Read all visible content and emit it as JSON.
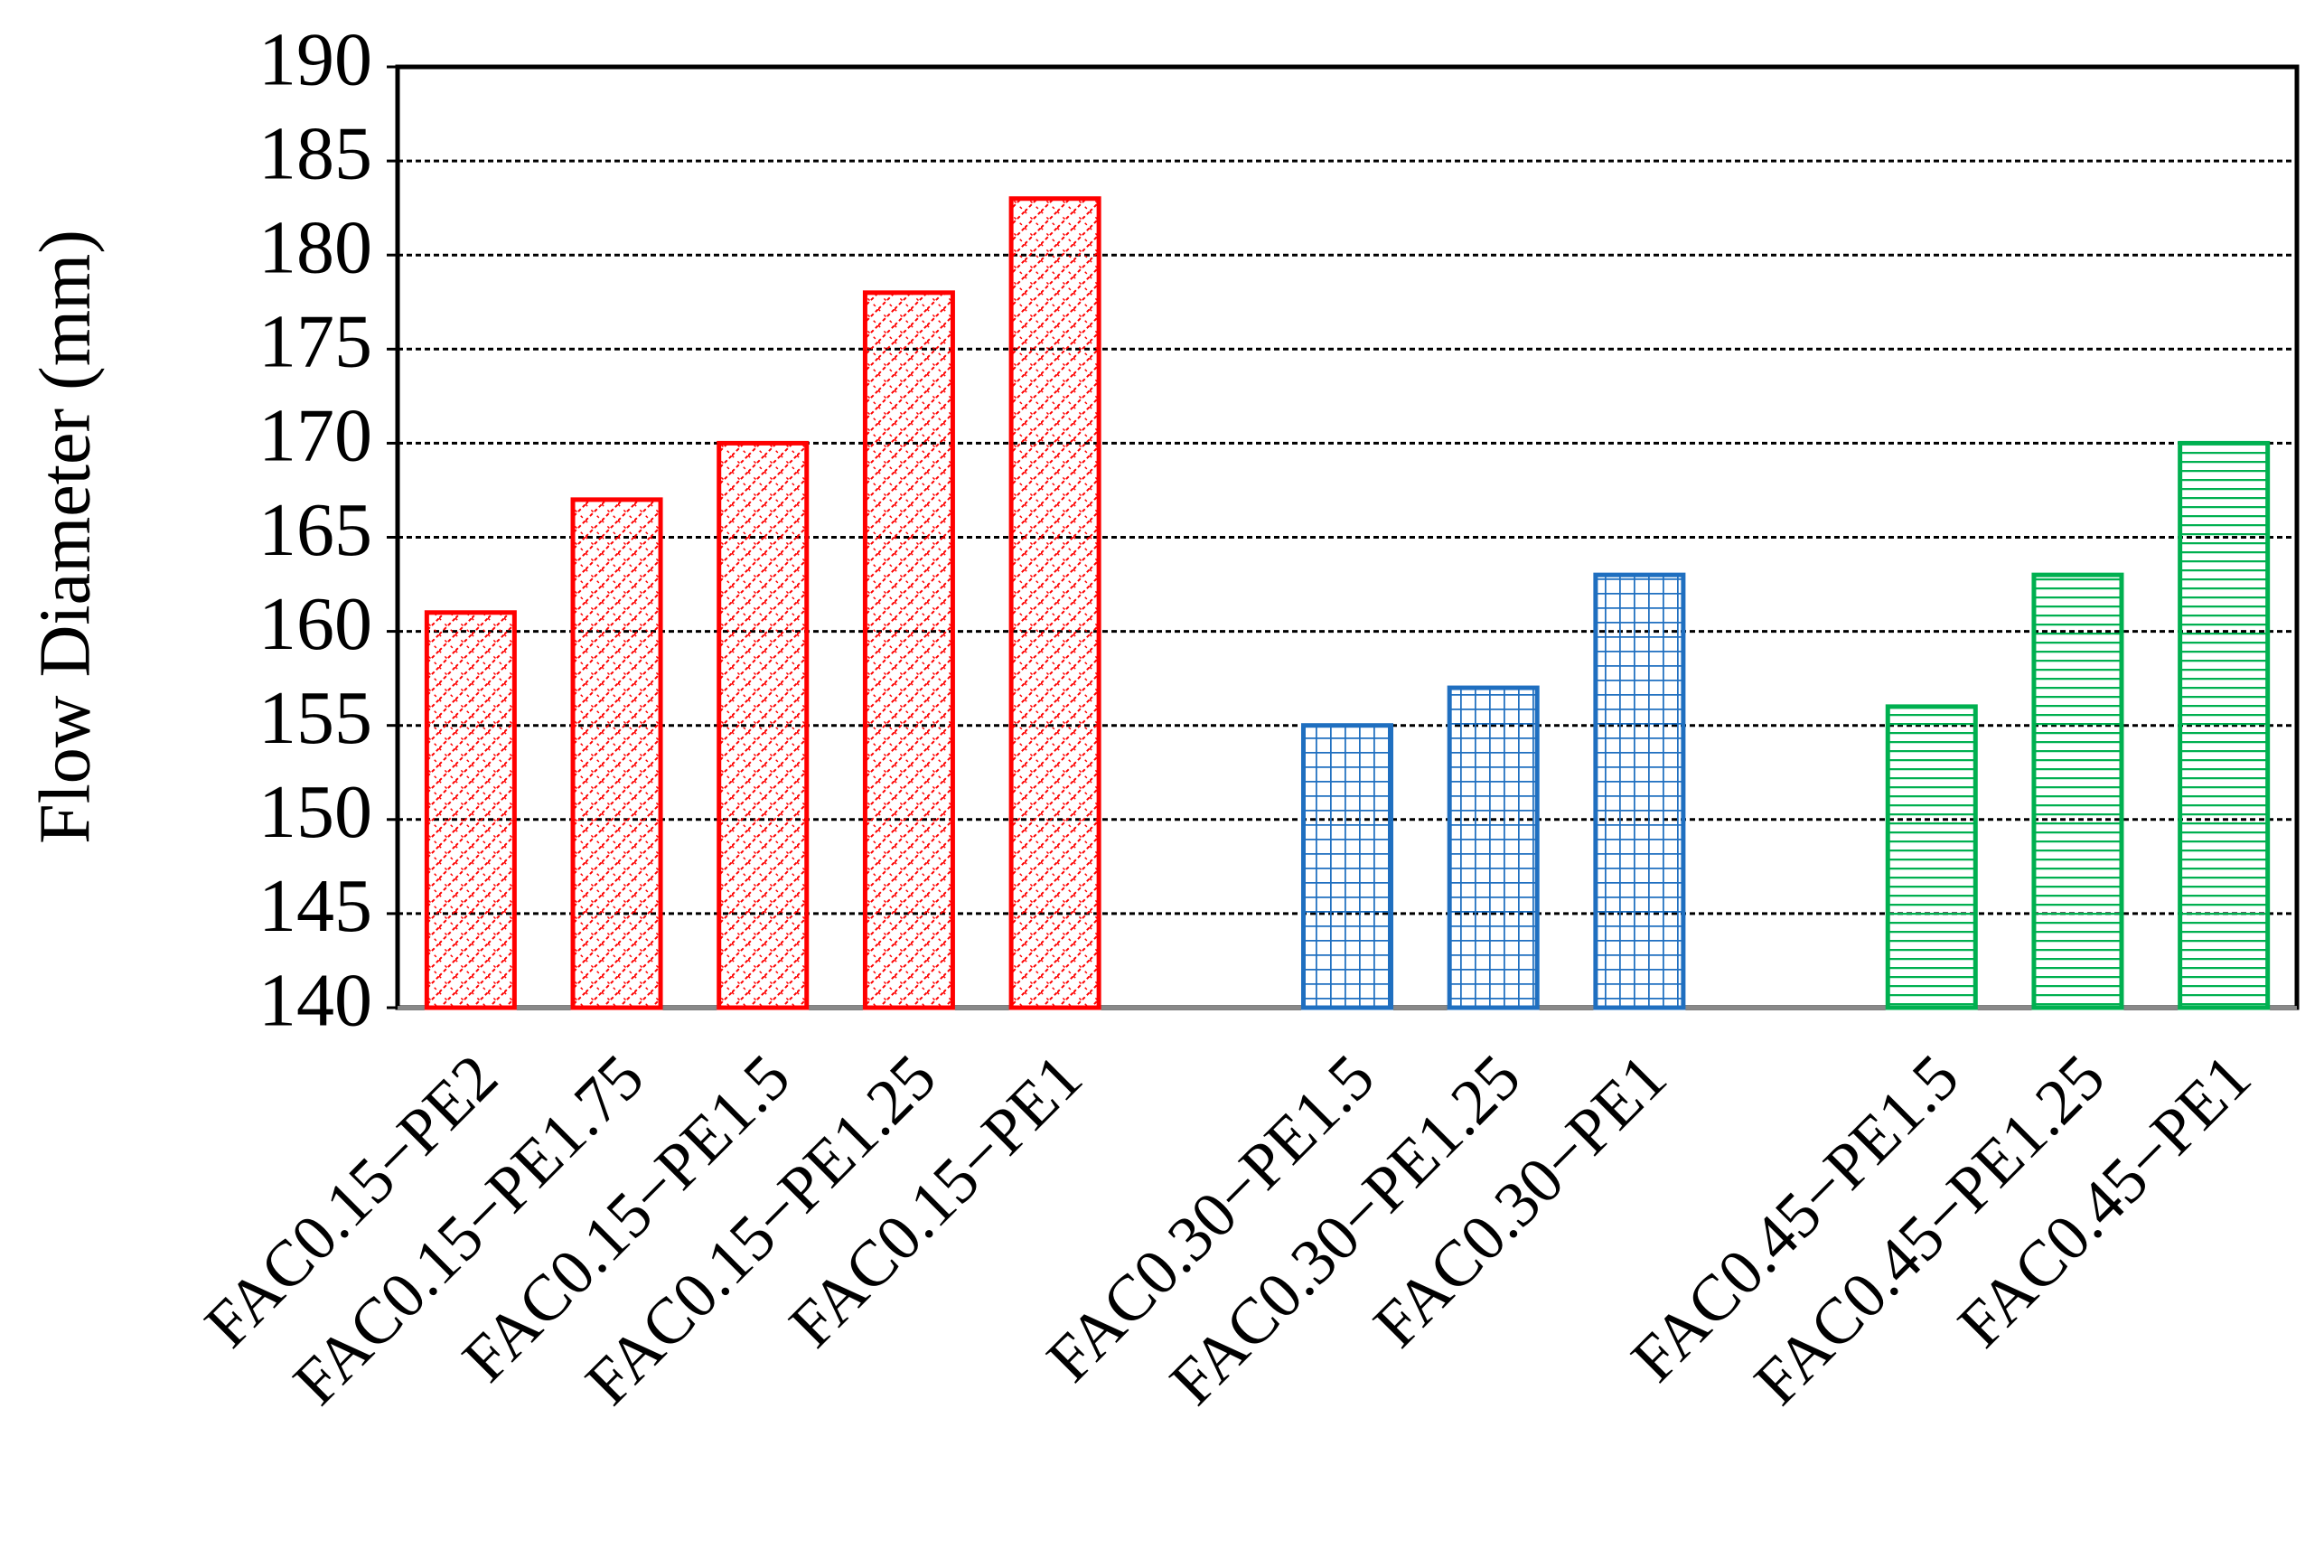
{
  "chart_data": {
    "type": "bar",
    "y_label": "Flow Diameter (mm)",
    "categories": [
      "FAC0.15−PE2",
      "FAC0.15−PE1.75",
      "FAC0.15−PE1.5",
      "FAC0.15−PE1.25",
      "FAC0.15−PE1",
      null,
      "FAC0.30−PE1.5",
      "FAC0.30−PE1.25",
      "FAC0.30−PE1",
      null,
      "FAC0.45−PE1.5",
      "FAC0.45−PE1.25",
      "FAC0.45−PE1"
    ],
    "series": [
      {
        "color": "#ff0000",
        "pattern": "diagonal-cross",
        "values": [
          161,
          167,
          170,
          178,
          183,
          null,
          null,
          null,
          null,
          null,
          null,
          null,
          null
        ]
      },
      {
        "color": "#1f6fc0",
        "pattern": "grid",
        "values": [
          null,
          null,
          null,
          null,
          null,
          null,
          155,
          157,
          163,
          null,
          null,
          null,
          null
        ]
      },
      {
        "color": "#00b050",
        "pattern": "horizontal",
        "values": [
          null,
          null,
          null,
          null,
          null,
          null,
          null,
          null,
          null,
          null,
          156,
          163,
          170
        ]
      }
    ],
    "ylim": [
      140,
      190
    ],
    "yticks": [
      140,
      145,
      150,
      155,
      160,
      165,
      170,
      175,
      180,
      185,
      190
    ],
    "grid": true
  }
}
